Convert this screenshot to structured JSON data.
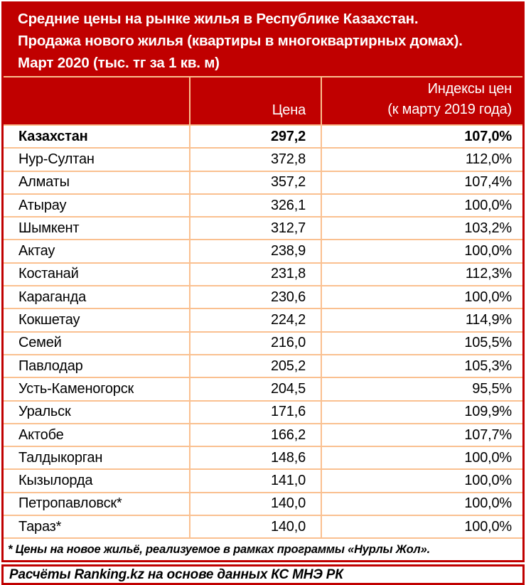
{
  "colors": {
    "accent_red": "#C00000",
    "grid_peach": "#FAC090",
    "header_text": "#FFFFFF",
    "body_text": "#000000"
  },
  "title": {
    "lines": [
      "Средние цены на рынке жилья в Республике Казахстан.",
      "Продажа нового жилья (квартиры в многоквартирных домах).",
      "Март 2020 (тыс. тг за 1 кв. м)"
    ]
  },
  "table": {
    "header": {
      "region": "",
      "price": "Цена",
      "index_line1": "Индексы цен",
      "index_line2": "(к марту 2019 года)"
    }
  },
  "chart_data": {
    "type": "table",
    "title": "Средние цены на рынке жилья в Республике Казахстан. Продажа нового жилья (квартиры в многоквартирных домах). Март 2020 (тыс. тг за 1 кв. м)",
    "columns": [
      "",
      "Цена",
      "Индексы цен (к марту 2019 года)"
    ],
    "rows": [
      [
        "Казахстан",
        "297,2",
        "107,0%"
      ],
      [
        "Нур-Султан",
        "372,8",
        "112,0%"
      ],
      [
        "Алматы",
        "357,2",
        "107,4%"
      ],
      [
        "Атырау",
        "326,1",
        "100,0%"
      ],
      [
        "Шымкент",
        "312,7",
        "103,2%"
      ],
      [
        "Актау",
        "238,9",
        "100,0%"
      ],
      [
        "Костанай",
        "231,8",
        "112,3%"
      ],
      [
        "Караганда",
        "230,6",
        "100,0%"
      ],
      [
        "Кокшетау",
        "224,2",
        "114,9%"
      ],
      [
        "Семей",
        "216,0",
        "105,5%"
      ],
      [
        "Павлодар",
        "205,2",
        "105,3%"
      ],
      [
        "Усть-Каменогорск",
        "204,5",
        "95,5%"
      ],
      [
        "Уральск",
        "171,6",
        "109,9%"
      ],
      [
        "Актобе",
        "166,2",
        "107,7%"
      ],
      [
        "Талдыкорган",
        "148,6",
        "100,0%"
      ],
      [
        "Кызылорда",
        "141,0",
        "100,0%"
      ],
      [
        "Петропавловск*",
        "140,0",
        "100,0%"
      ],
      [
        "Тараз*",
        "140,0",
        "100,0%"
      ]
    ]
  },
  "footnote": "* Цены на новое жильё, реализуемое в рамках программы «Нурлы Жол».",
  "source": "Расчёты Ranking.kz на основе данных КС МНЭ РК"
}
